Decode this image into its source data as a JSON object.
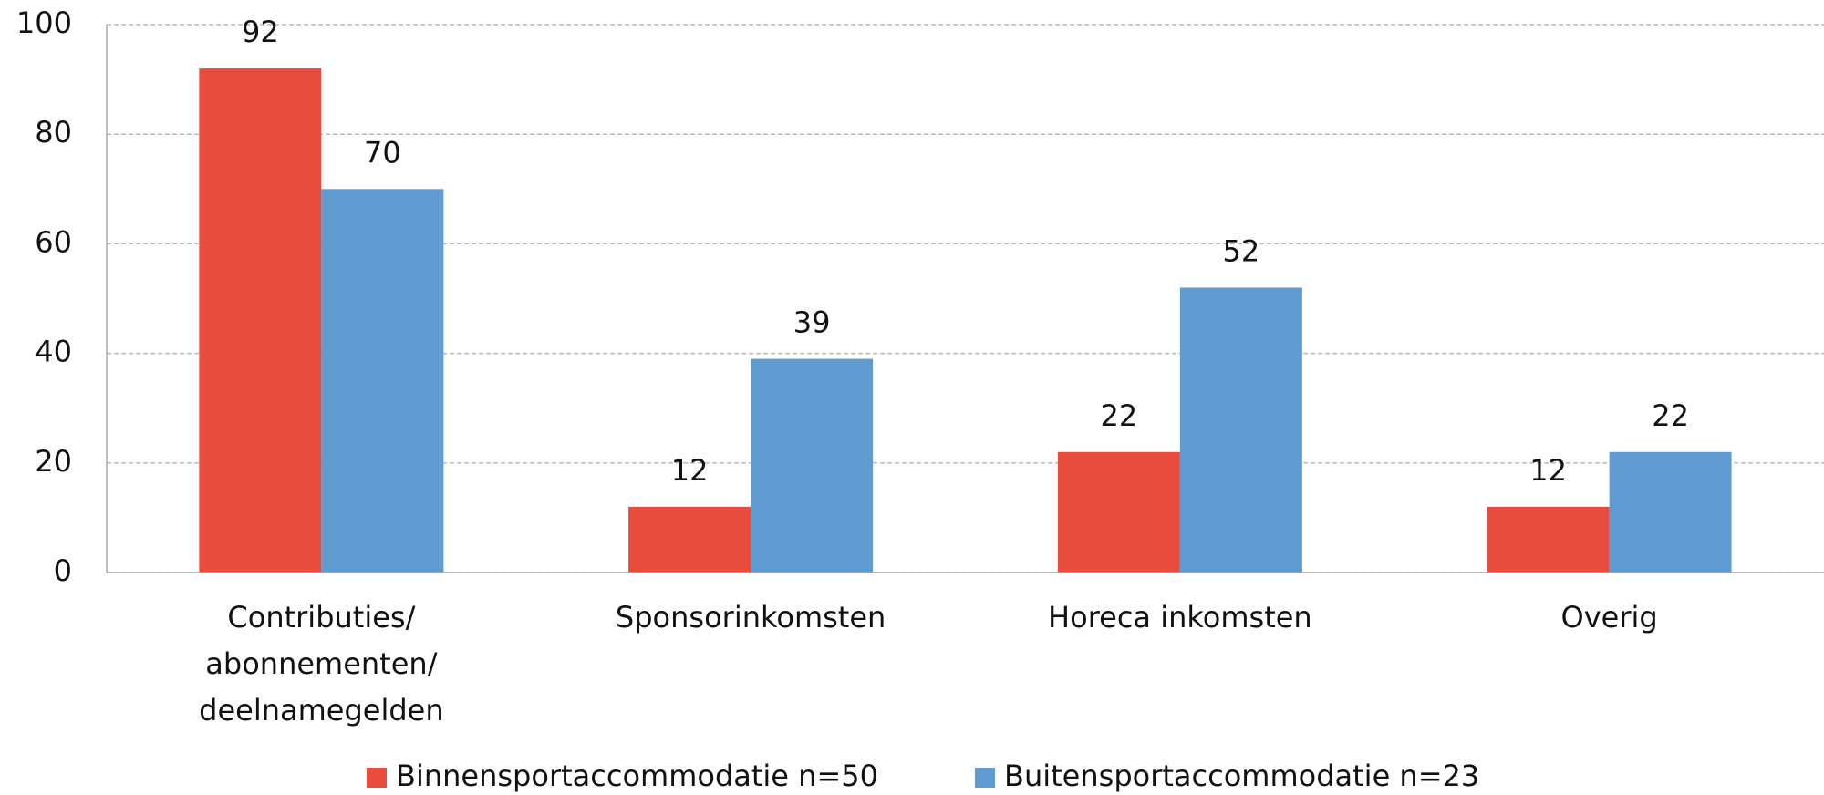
{
  "chart_data": {
    "type": "bar",
    "categories": [
      "Contributies/ abonnementen/ deelnamegelden",
      "Sponsorinkomsten",
      "Horeca inkomsten",
      "Overig"
    ],
    "series": [
      {
        "name": "Binnensportaccommodatie n=50",
        "color": "#e84c3d",
        "values": [
          92,
          12,
          22,
          12
        ]
      },
      {
        "name": "Buitensportaccommodatie n=23",
        "color": "#5f9ad1",
        "values": [
          70,
          39,
          52,
          22
        ]
      }
    ],
    "ylim": [
      0,
      100
    ],
    "yticks": [
      0,
      20,
      40,
      60,
      80,
      100
    ],
    "grid": true,
    "legend": "bottom"
  }
}
